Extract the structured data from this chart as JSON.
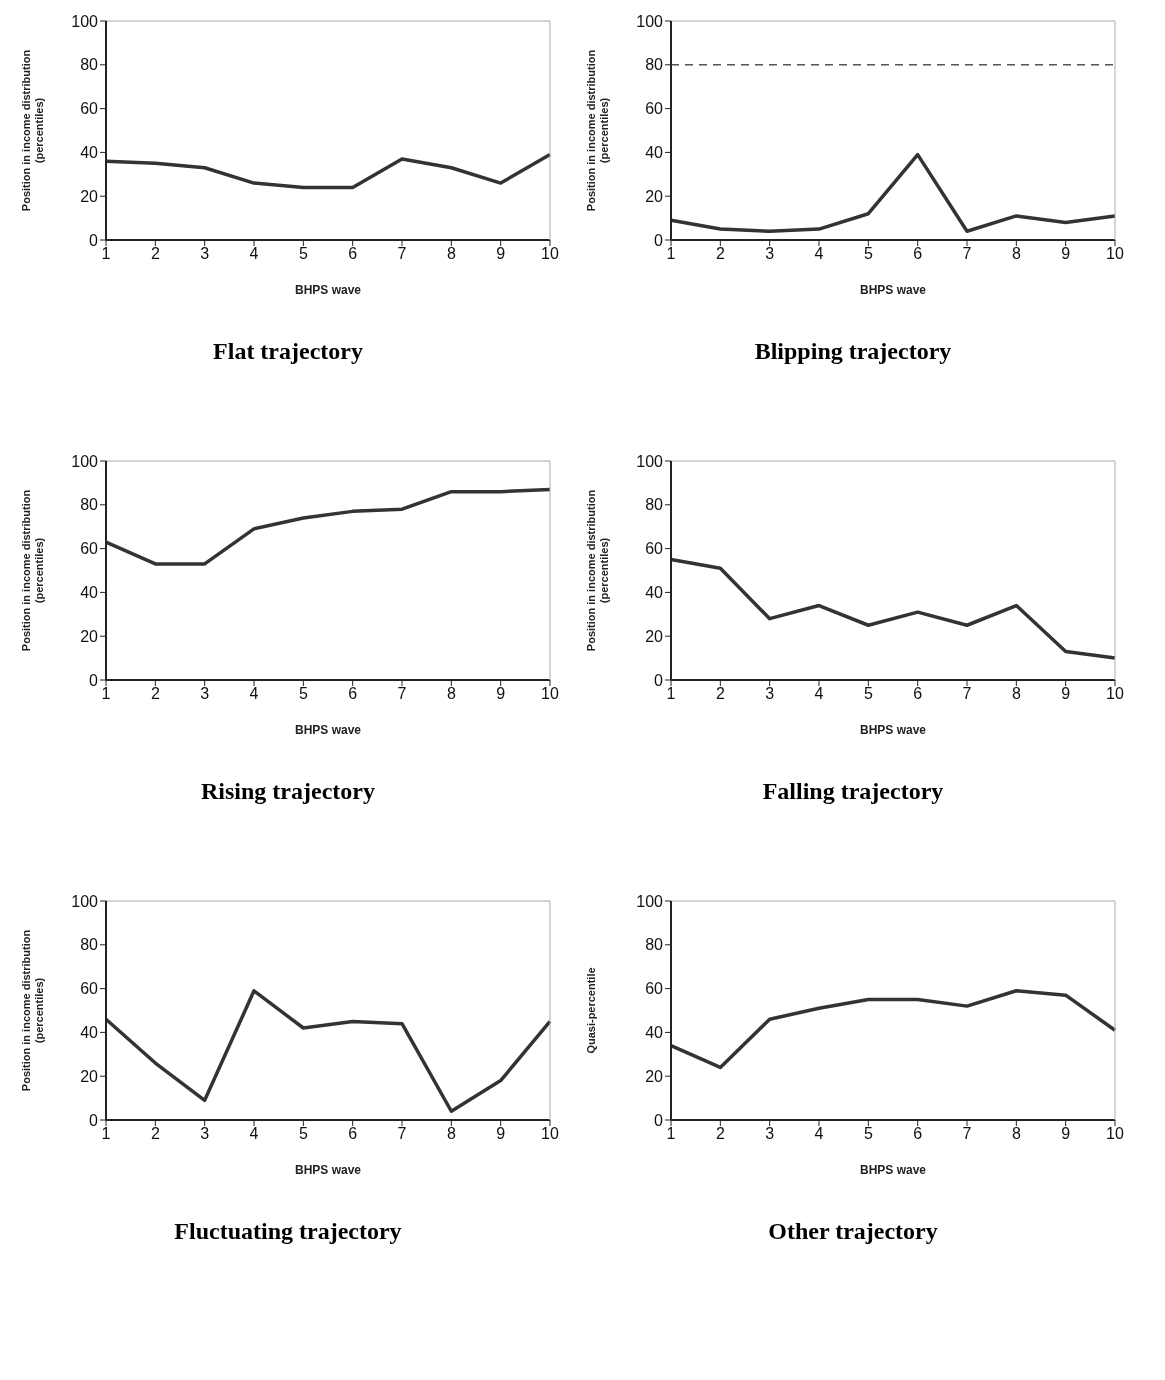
{
  "chart_data": [
    {
      "type": "line",
      "title": "Flat trajectory",
      "xlabel": "BHPS wave",
      "ylabel": "Position in income distribution (percentiles)",
      "categories": [
        "1",
        "2",
        "3",
        "4",
        "5",
        "6",
        "7",
        "8",
        "9",
        "10"
      ],
      "ylim": [
        0,
        100
      ],
      "yticks": [
        0,
        20,
        40,
        60,
        80,
        100
      ],
      "marker": "none",
      "line_style": "solid",
      "series": [
        {
          "color": "#333333",
          "values": [
            36,
            35,
            33,
            26,
            24,
            24,
            37,
            33,
            26,
            39
          ]
        }
      ]
    },
    {
      "type": "line",
      "title": "Blipping trajectory",
      "xlabel": "BHPS wave",
      "ylabel": "Position in income distribution (percentiles)",
      "categories": [
        "1",
        "2",
        "3",
        "4",
        "5",
        "6",
        "7",
        "8",
        "9",
        "10"
      ],
      "ylim": [
        0,
        100
      ],
      "yticks": [
        0,
        20,
        40,
        60,
        80,
        100
      ],
      "marker": "none",
      "line_style": "solid",
      "ref_lines": [
        {
          "axis": "y",
          "value": 80,
          "color": "#555555",
          "line_style": "dashed"
        }
      ],
      "series": [
        {
          "color": "#333333",
          "values": [
            9,
            5,
            4,
            5,
            12,
            39,
            4,
            11,
            8,
            11
          ]
        }
      ]
    },
    {
      "type": "line",
      "title": "Rising trajectory",
      "xlabel": "BHPS wave",
      "ylabel": "Position in income distribution (percentiles)",
      "categories": [
        "1",
        "2",
        "3",
        "4",
        "5",
        "6",
        "7",
        "8",
        "9",
        "10"
      ],
      "ylim": [
        0,
        100
      ],
      "yticks": [
        0,
        20,
        40,
        60,
        80,
        100
      ],
      "marker": "none",
      "line_style": "solid",
      "series": [
        {
          "color": "#333333",
          "values": [
            63,
            53,
            53,
            69,
            74,
            77,
            78,
            86,
            86,
            87
          ]
        }
      ]
    },
    {
      "type": "line",
      "title": "Falling trajectory",
      "xlabel": "BHPS wave",
      "ylabel": "Position in income distribution (percentiles)",
      "categories": [
        "1",
        "2",
        "3",
        "4",
        "5",
        "6",
        "7",
        "8",
        "9",
        "10"
      ],
      "ylim": [
        0,
        100
      ],
      "yticks": [
        0,
        20,
        40,
        60,
        80,
        100
      ],
      "marker": "none",
      "line_style": "solid",
      "series": [
        {
          "color": "#333333",
          "values": [
            55,
            51,
            28,
            34,
            25,
            31,
            25,
            34,
            13,
            10
          ]
        }
      ]
    },
    {
      "type": "line",
      "title": "Fluctuating trajectory",
      "xlabel": "BHPS wave",
      "ylabel": "Position in income distribution (percentiles)",
      "categories": [
        "1",
        "2",
        "3",
        "4",
        "5",
        "6",
        "7",
        "8",
        "9",
        "10"
      ],
      "ylim": [
        0,
        100
      ],
      "yticks": [
        0,
        20,
        40,
        60,
        80,
        100
      ],
      "marker": "none",
      "line_style": "solid",
      "series": [
        {
          "color": "#333333",
          "values": [
            46,
            26,
            9,
            59,
            42,
            45,
            44,
            4,
            18,
            45
          ]
        }
      ]
    },
    {
      "type": "line",
      "title": "Other trajectory",
      "xlabel": "BHPS wave",
      "ylabel": "Quasi-percentile",
      "categories": [
        "1",
        "2",
        "3",
        "4",
        "5",
        "6",
        "7",
        "8",
        "9",
        "10"
      ],
      "ylim": [
        0,
        100
      ],
      "yticks": [
        0,
        20,
        40,
        60,
        80,
        100
      ],
      "marker": "none",
      "line_style": "solid",
      "series": [
        {
          "color": "#333333",
          "values": [
            34,
            24,
            46,
            51,
            55,
            55,
            52,
            59,
            57,
            41
          ]
        }
      ]
    }
  ]
}
